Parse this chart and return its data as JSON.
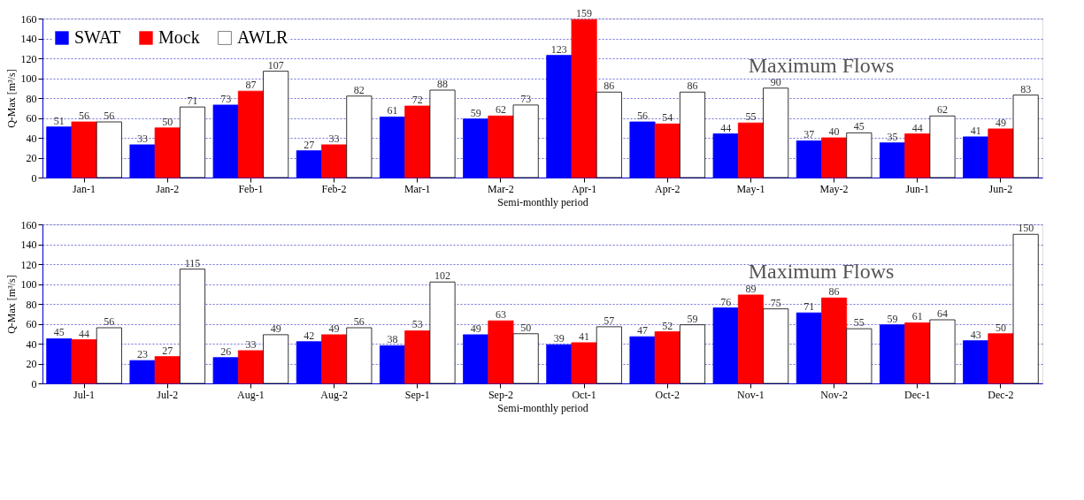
{
  "chart_data": [
    {
      "type": "bar",
      "categories": [
        "Jan-1",
        "Jan-2",
        "Feb-1",
        "Feb-2",
        "Mar-1",
        "Mar-2",
        "Apr-1",
        "Apr-2",
        "May-1",
        "May-2",
        "Jun-1",
        "Jun-2"
      ],
      "series": [
        {
          "name": "SWAT",
          "color": "#0000ff",
          "values": [
            51,
            33,
            73,
            27,
            61,
            59,
            123,
            56,
            44,
            37,
            35,
            41
          ]
        },
        {
          "name": "Mock",
          "color": "#ff0000",
          "values": [
            56,
            50,
            87,
            33,
            72,
            62,
            159,
            54,
            55,
            40,
            44,
            49
          ]
        },
        {
          "name": "AWLR",
          "color": "#ffffff",
          "values": [
            56,
            71,
            107,
            82,
            88,
            73,
            86,
            86,
            90,
            45,
            62,
            83
          ]
        }
      ],
      "xlabel": "Semi-monthly period",
      "ylabel": "Q-Max [m³/s]",
      "ylim": [
        0,
        160
      ],
      "yticks": [
        0,
        20,
        40,
        60,
        80,
        100,
        120,
        140,
        160
      ],
      "grid": "y",
      "legend": "top left",
      "data_labels": true,
      "annotations": [
        "Maximum Flows"
      ]
    },
    {
      "type": "bar",
      "categories": [
        "Jul-1",
        "Jul-2",
        "Aug-1",
        "Aug-2",
        "Sep-1",
        "Sep-2",
        "Oct-1",
        "Oct-2",
        "Nov-1",
        "Nov-2",
        "Dec-1",
        "Dec-2"
      ],
      "series": [
        {
          "name": "SWAT",
          "color": "#0000ff",
          "values": [
            45,
            23,
            26,
            42,
            38,
            49,
            39,
            47,
            76,
            71,
            59,
            43
          ]
        },
        {
          "name": "Mock",
          "color": "#ff0000",
          "values": [
            44,
            27,
            33,
            49,
            53,
            63,
            41,
            52,
            89,
            86,
            61,
            50
          ]
        },
        {
          "name": "AWLR",
          "color": "#ffffff",
          "values": [
            56,
            115,
            49,
            56,
            102,
            50,
            57,
            59,
            75,
            55,
            64,
            150
          ]
        }
      ],
      "xlabel": "Semi-monthly period",
      "ylabel": "Q-Max [m³/s]",
      "ylim": [
        0,
        160
      ],
      "yticks": [
        0,
        20,
        40,
        60,
        80,
        100,
        120,
        140,
        160
      ],
      "grid": "y",
      "legend": "top left",
      "data_labels": true,
      "annotations": [
        "Maximum Flows"
      ]
    }
  ]
}
